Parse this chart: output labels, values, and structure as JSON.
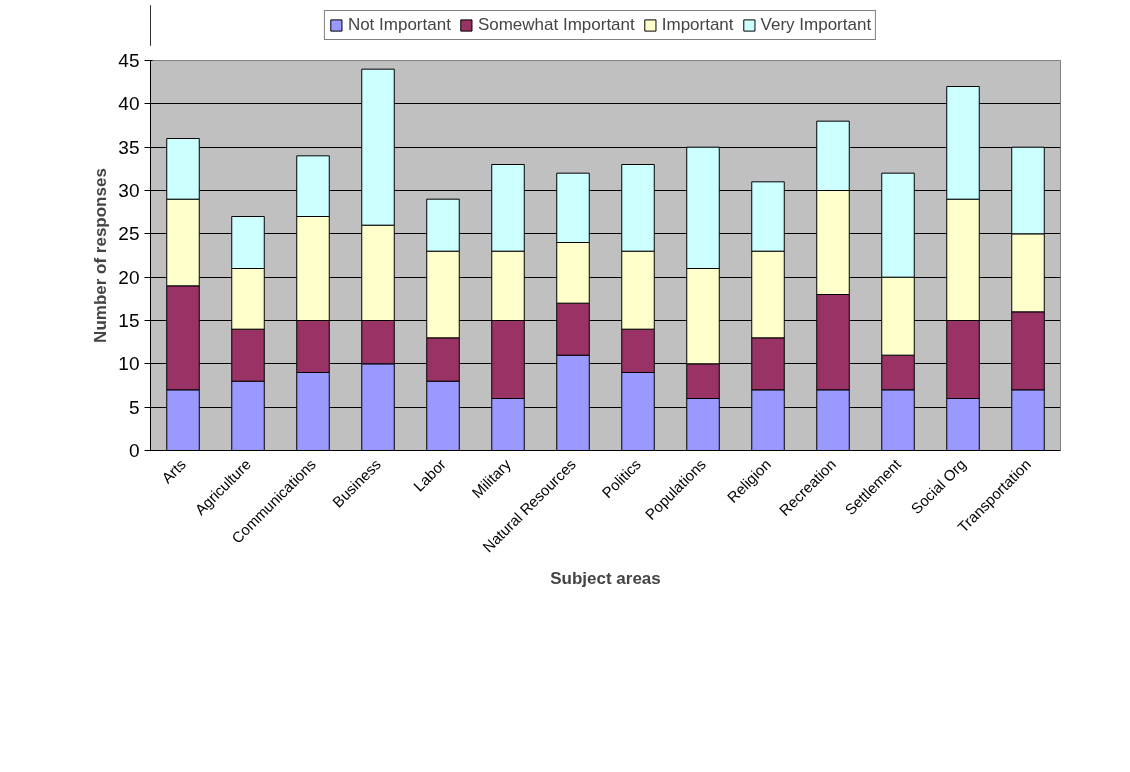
{
  "chart_data": {
    "type": "bar",
    "stacked": true,
    "xlabel": "Subject areas",
    "ylabel": "Number of responses",
    "categories": [
      "Arts",
      "Agriculture",
      "Communications",
      "Business",
      "Labor",
      "Military",
      "Natural Resources",
      "Politics",
      "Populations",
      "Religion",
      "Recreation",
      "Settlement",
      "Social Org",
      "Transportation"
    ],
    "series": [
      {
        "name": "Not Important",
        "color": "#9999ff",
        "values": [
          7,
          8,
          9,
          10,
          8,
          6,
          11,
          9,
          6,
          7,
          7,
          7,
          6,
          7
        ]
      },
      {
        "name": "Somewhat Important",
        "color": "#993366",
        "values": [
          12,
          6,
          6,
          5,
          5,
          9,
          6,
          5,
          4,
          6,
          11,
          4,
          9,
          9
        ]
      },
      {
        "name": "Important",
        "color": "#ffffcc",
        "values": [
          10,
          7,
          12,
          11,
          10,
          8,
          7,
          9,
          11,
          10,
          12,
          9,
          14,
          9
        ]
      },
      {
        "name": "Very Important",
        "color": "#ccffff",
        "values": [
          7,
          6,
          7,
          18,
          6,
          10,
          8,
          10,
          14,
          8,
          8,
          12,
          13,
          10
        ]
      }
    ],
    "ylim": [
      0,
      45
    ],
    "yticks": [
      0,
      5,
      10,
      15,
      20,
      25,
      30,
      35,
      40,
      45
    ],
    "grid": "y",
    "legend": "top"
  }
}
